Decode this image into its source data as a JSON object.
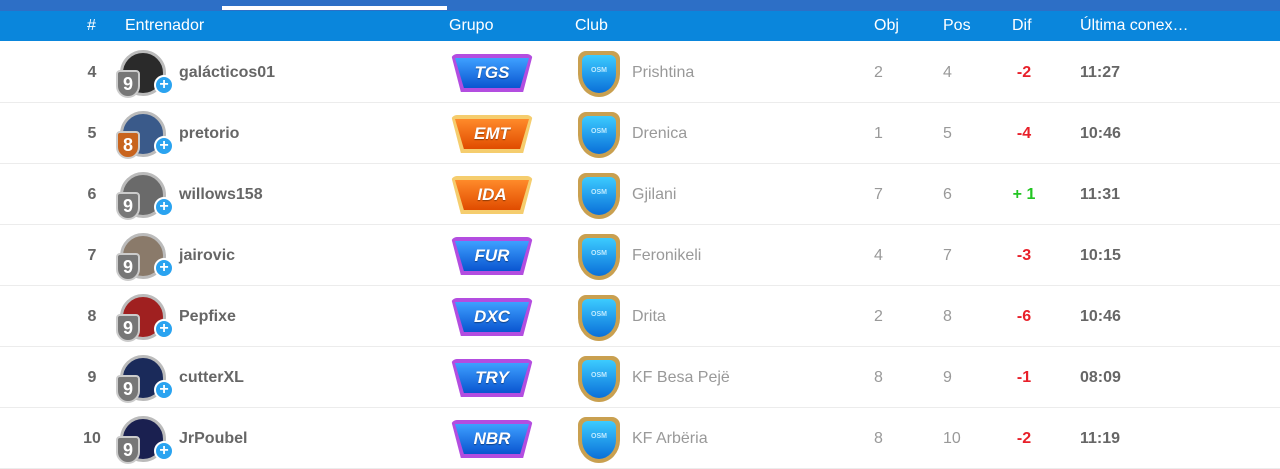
{
  "header": {
    "rank": "#",
    "coach": "Entrenador",
    "group": "Grupo",
    "club": "Club",
    "obj": "Obj",
    "pos": "Pos",
    "dif": "Dif",
    "last": "Última conex…"
  },
  "colors": {
    "header_bg": "#0a86dc",
    "negative": "#e8202a",
    "positive": "#22c522",
    "group_purple": "#b34de0",
    "group_orange": "#f5cd6e"
  },
  "club_logo_text": "OSM",
  "rows": [
    {
      "rank": "4",
      "level": "9",
      "level_color": "gray",
      "name": "galácticos01",
      "group": "TGS",
      "group_color": "purple",
      "club": "Prishtina",
      "obj": "2",
      "pos": "4",
      "dif": "-2",
      "last": "11:27",
      "avatar": "#2a2a2a"
    },
    {
      "rank": "5",
      "level": "8",
      "level_color": "orange",
      "name": "pretorio",
      "group": "EMT",
      "group_color": "orange",
      "club": "Drenica",
      "obj": "1",
      "pos": "5",
      "dif": "-4",
      "last": "10:46",
      "avatar": "#3a5a8a"
    },
    {
      "rank": "6",
      "level": "9",
      "level_color": "gray",
      "name": "willows158",
      "group": "IDA",
      "group_color": "orange",
      "club": "Gjilani",
      "obj": "7",
      "pos": "6",
      "dif": "+ 1",
      "last": "11:31",
      "avatar": "#6a6a6a"
    },
    {
      "rank": "7",
      "level": "9",
      "level_color": "gray",
      "name": "jairovic",
      "group": "FUR",
      "group_color": "purple",
      "club": "Feronikeli",
      "obj": "4",
      "pos": "7",
      "dif": "-3",
      "last": "10:15",
      "avatar": "#8a7a6a"
    },
    {
      "rank": "8",
      "level": "9",
      "level_color": "gray",
      "name": "Pepfixe",
      "group": "DXC",
      "group_color": "purple",
      "club": "Drita",
      "obj": "2",
      "pos": "8",
      "dif": "-6",
      "last": "10:46",
      "avatar": "#a02020"
    },
    {
      "rank": "9",
      "level": "9",
      "level_color": "gray",
      "name": "cutterXL",
      "group": "TRY",
      "group_color": "purple",
      "club": "KF Besa Pejë",
      "obj": "8",
      "pos": "9",
      "dif": "-1",
      "last": "08:09",
      "avatar": "#1a2a5a"
    },
    {
      "rank": "10",
      "level": "9",
      "level_color": "gray",
      "name": "JrPoubel",
      "group": "NBR",
      "group_color": "purple",
      "club": "KF Arbëria",
      "obj": "8",
      "pos": "10",
      "dif": "-2",
      "last": "11:19",
      "avatar": "#1a2050"
    }
  ]
}
